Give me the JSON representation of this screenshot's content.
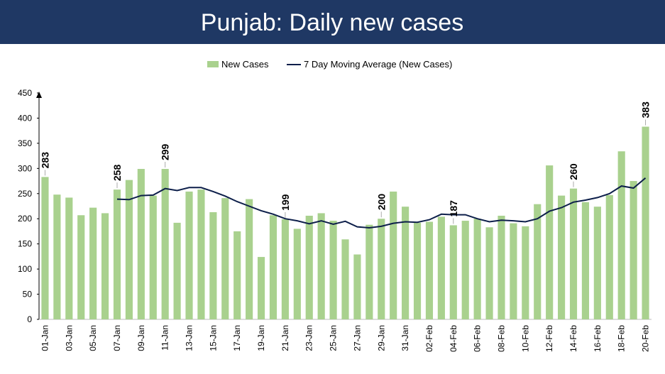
{
  "chart_data": {
    "type": "bar_line",
    "title": "Punjab: Daily new cases",
    "categories": [
      "01-Jan",
      null,
      "03-Jan",
      null,
      "05-Jan",
      null,
      "07-Jan",
      null,
      "09-Jan",
      null,
      "11-Jan",
      null,
      "13-Jan",
      null,
      "15-Jan",
      null,
      "17-Jan",
      null,
      "19-Jan",
      null,
      "21-Jan",
      null,
      "23-Jan",
      null,
      "25-Jan",
      null,
      "27-Jan",
      null,
      "29-Jan",
      null,
      "31-Jan",
      null,
      "02-Feb",
      null,
      "04-Feb",
      null,
      "06-Feb",
      null,
      "08-Feb",
      null,
      "10-Feb",
      null,
      "12-Feb",
      null,
      "14-Feb",
      null,
      "16-Feb",
      null,
      "18-Feb",
      null,
      "20-Feb"
    ],
    "series": [
      {
        "name": "New Cases",
        "color": "#a9d18e",
        "type": "bar",
        "values": [
          283,
          248,
          242,
          207,
          222,
          211,
          258,
          277,
          299,
          246,
          299,
          192,
          254,
          258,
          213,
          241,
          175,
          239,
          124,
          207,
          199,
          180,
          206,
          211,
          196,
          159,
          129,
          188,
          200,
          254,
          224,
          192,
          194,
          204,
          187,
          196,
          200,
          183,
          206,
          191,
          185,
          229,
          306,
          246,
          260,
          233,
          224,
          247,
          334,
          275,
          383
        ],
        "labels": [
          283,
          null,
          null,
          null,
          null,
          null,
          258,
          null,
          null,
          null,
          299,
          null,
          null,
          null,
          null,
          null,
          null,
          null,
          null,
          null,
          199,
          null,
          null,
          null,
          null,
          null,
          null,
          null,
          200,
          null,
          null,
          null,
          null,
          null,
          187,
          null,
          null,
          null,
          null,
          null,
          null,
          null,
          null,
          null,
          260,
          null,
          null,
          null,
          null,
          null,
          383
        ]
      },
      {
        "name": "7 Day Moving Average (New Cases)",
        "color": "#0d1f4a",
        "type": "line",
        "values": [
          null,
          null,
          null,
          null,
          null,
          null,
          239,
          238,
          246,
          247,
          260,
          256,
          262,
          262,
          254,
          245,
          234,
          225,
          216,
          209,
          200,
          196,
          190,
          196,
          189,
          195,
          184,
          182,
          185,
          191,
          194,
          193,
          198,
          209,
          208,
          208,
          200,
          194,
          197,
          196,
          194,
          200,
          215,
          222,
          233,
          237,
          242,
          250,
          265,
          261,
          281
        ]
      }
    ],
    "ylim": [
      0,
      450
    ],
    "yticks": [
      0,
      50,
      100,
      150,
      200,
      250,
      300,
      350,
      400,
      450
    ],
    "grid": false
  }
}
